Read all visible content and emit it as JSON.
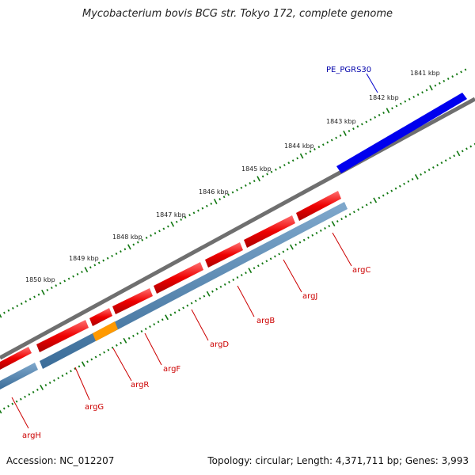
{
  "title": "Mycobacterium bovis BCG str. Tokyo 172, complete genome",
  "footer": {
    "accession": "Accession: NC_012207",
    "topology": "Topology: circular; Length: 4,371,711 bp; Genes: 3,993"
  },
  "colors": {
    "forward_feature": "#0000ee",
    "reverse_feature": "#ee0000",
    "gene_track": "#4a7fae",
    "highlight_gene": "#ff9900",
    "backbone": "#888888",
    "tick": "#117711",
    "gene_label": "#cc0000",
    "pe_label": "#0000aa"
  },
  "scale_labels": [
    "1841 kbp",
    "1842 kbp",
    "1843 kbp",
    "1844 kbp",
    "1845 kbp",
    "1846 kbp",
    "1847 kbp",
    "1848 kbp",
    "1849 kbp",
    "1850 kbp"
  ],
  "gene_labels": [
    "argC",
    "argJ",
    "argB",
    "argD",
    "argF",
    "argR",
    "argG",
    "argH"
  ],
  "feature_labels": [
    "PE_PGRS30"
  ]
}
